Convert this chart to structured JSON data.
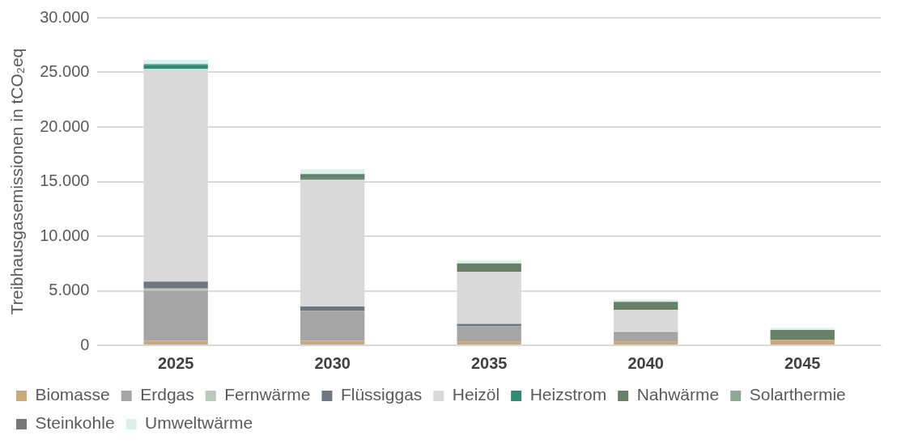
{
  "chart_data": {
    "type": "bar",
    "stacked": true,
    "ylabel": "Treibhausgasemissionen in tCO₂eq",
    "categories": [
      "2025",
      "2030",
      "2035",
      "2040",
      "2045"
    ],
    "series": [
      {
        "name": "Biomasse",
        "color": "#c9a97a",
        "values": [
          400,
          400,
          350,
          350,
          500
        ]
      },
      {
        "name": "Erdgas",
        "color": "#a5a5a5",
        "values": [
          4600,
          2750,
          1390,
          780,
          null
        ]
      },
      {
        "name": "Fernwärme",
        "color": "#b9c9bb",
        "values": [
          200,
          null,
          null,
          0,
          0
        ]
      },
      {
        "name": "Flüssiggas",
        "color": "#6f7581",
        "values": [
          630,
          400,
          220,
          80,
          0
        ]
      },
      {
        "name": "Heizöl",
        "color": "#d9d9d9",
        "values": [
          19500,
          11640,
          4780,
          2050,
          0
        ]
      },
      {
        "name": "Heizstrom",
        "color": "#2e8b74",
        "values": [
          350,
          80,
          0,
          0,
          0
        ]
      },
      {
        "name": "Nahwärme",
        "color": "#667f66",
        "values": [
          0,
          410,
          760,
          730,
          910
        ]
      },
      {
        "name": "Solarthermie",
        "color": "#8fa896",
        "values": [
          100,
          0,
          0,
          0,
          0
        ]
      },
      {
        "name": "Steinkohle",
        "color": "#77767a",
        "values": [
          0,
          0,
          0,
          0,
          0
        ]
      },
      {
        "name": "Umweltwärme",
        "color": "#d9f0ec",
        "values": [
          370,
          440,
          290,
          200,
          180
        ]
      }
    ],
    "ylim": [
      0,
      30000
    ],
    "yticks": [
      {
        "value": 0,
        "label": "0"
      },
      {
        "value": 5000,
        "label": "5.000"
      },
      {
        "value": 10000,
        "label": "10.000"
      },
      {
        "value": 15000,
        "label": "15.000"
      },
      {
        "value": 20000,
        "label": "20.000"
      },
      {
        "value": 25000,
        "label": "25.000"
      },
      {
        "value": 30000,
        "label": "30.000"
      }
    ],
    "grid": "y",
    "legend": "bottom"
  }
}
